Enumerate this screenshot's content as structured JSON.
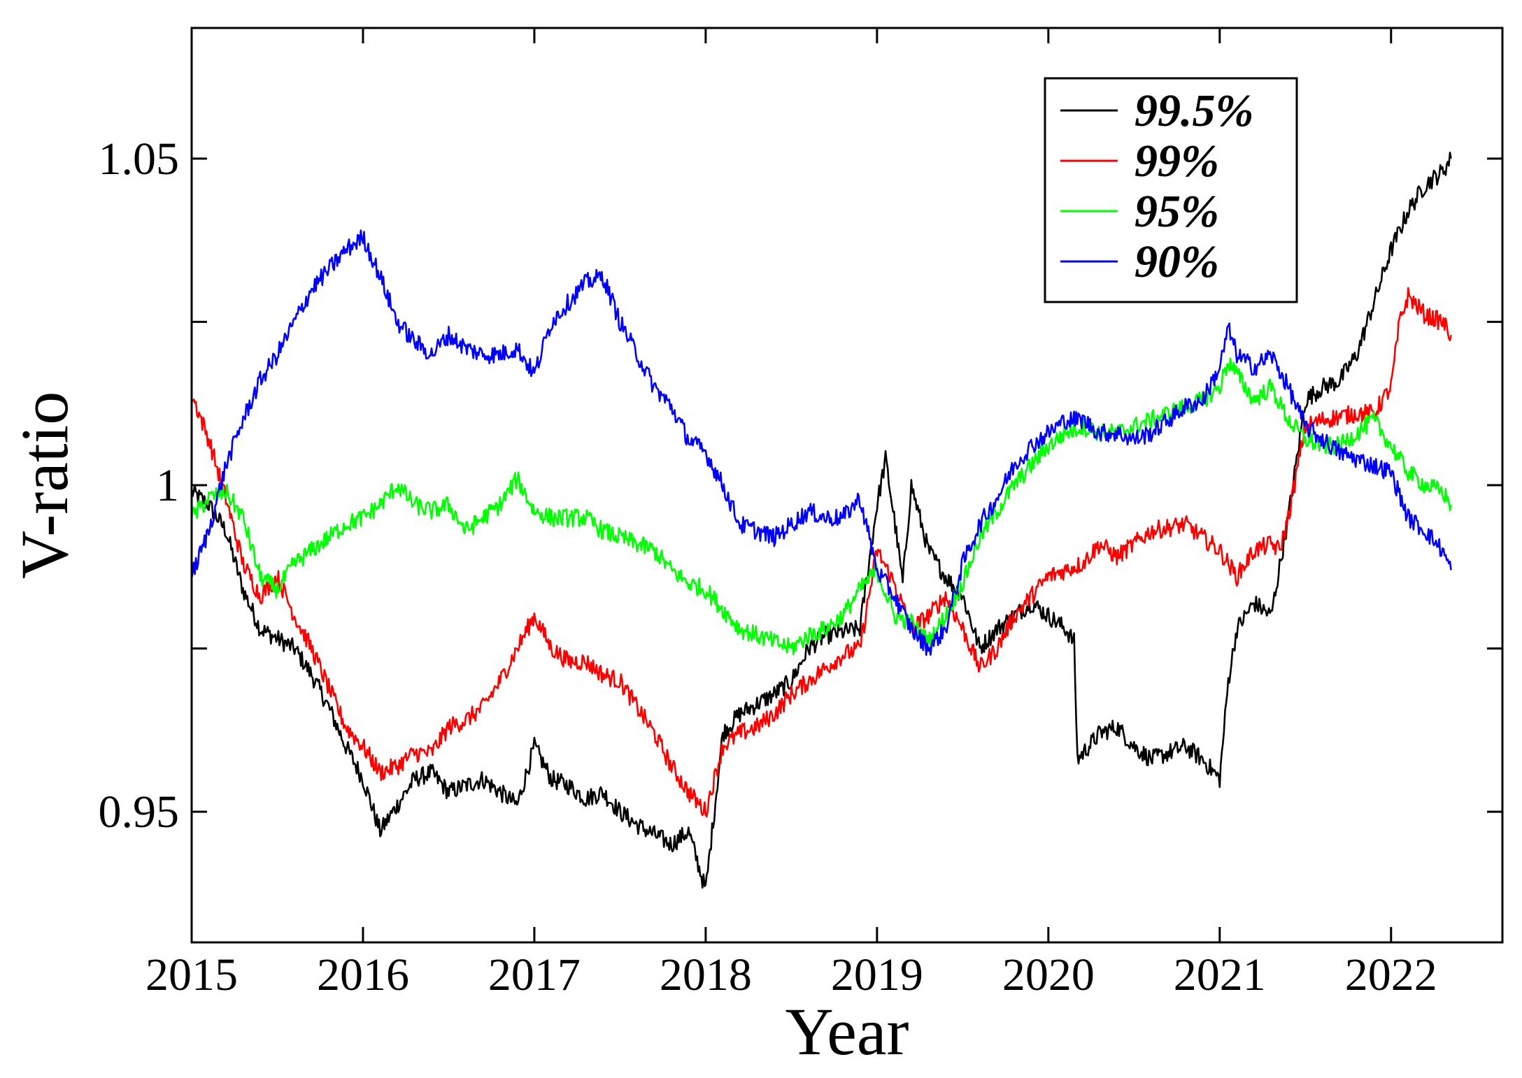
{
  "chart_data": {
    "type": "line",
    "title": "",
    "xlabel": "Year",
    "ylabel": "V-ratio",
    "xlim": [
      2015.0,
      2022.65
    ],
    "ylim": [
      0.93,
      1.07
    ],
    "x_ticks": [
      2015,
      2016,
      2017,
      2018,
      2019,
      2020,
      2021,
      2022
    ],
    "x_tick_labels": [
      "2015",
      "2016",
      "2017",
      "2018",
      "2019",
      "2020",
      "2021",
      "2022"
    ],
    "y_ticks": [
      0.95,
      0.975,
      1.0,
      1.025,
      1.05
    ],
    "y_tick_labels": [
      "0.95",
      "",
      "1",
      "",
      "1.05"
    ],
    "grid": false,
    "legend_position": "top-right",
    "series": [
      {
        "name": "99.5%",
        "color": "#000000",
        "x": [
          2015.0,
          2015.1,
          2015.2,
          2015.3,
          2015.4,
          2015.6,
          2015.7,
          2015.8,
          2015.9,
          2016.0,
          2016.1,
          2016.2,
          2016.3,
          2016.4,
          2016.5,
          2016.7,
          2016.8,
          2016.9,
          2017.0,
          2017.1,
          2017.2,
          2017.3,
          2017.4,
          2017.5,
          2017.6,
          2017.8,
          2017.9,
          2018.0,
          2018.1,
          2018.2,
          2018.4,
          2018.5,
          2018.6,
          2018.7,
          2018.9,
          2019.0,
          2019.05,
          2019.1,
          2019.15,
          2019.2,
          2019.3,
          2019.4,
          2019.5,
          2019.6,
          2019.7,
          2019.8,
          2019.9,
          2020.0,
          2020.1,
          2020.15,
          2020.17,
          2020.3,
          2020.4,
          2020.5,
          2020.6,
          2020.8,
          2020.9,
          2021.0,
          2021.05,
          2021.1,
          2021.2,
          2021.3,
          2021.4,
          2021.5,
          2021.6,
          2021.7,
          2021.8,
          2021.9,
          2022.0,
          2022.1,
          2022.2,
          2022.3,
          2022.35
        ],
        "y": [
          0.999,
          0.997,
          0.993,
          0.984,
          0.978,
          0.975,
          0.971,
          0.966,
          0.96,
          0.955,
          0.947,
          0.951,
          0.955,
          0.956,
          0.953,
          0.955,
          0.953,
          0.951,
          0.96,
          0.955,
          0.954,
          0.952,
          0.953,
          0.95,
          0.948,
          0.945,
          0.947,
          0.938,
          0.962,
          0.965,
          0.968,
          0.97,
          0.975,
          0.977,
          0.978,
          0.997,
          1.004,
          0.995,
          0.985,
          1.0,
          0.99,
          0.986,
          0.983,
          0.975,
          0.978,
          0.98,
          0.982,
          0.98,
          0.978,
          0.976,
          0.958,
          0.962,
          0.963,
          0.96,
          0.958,
          0.96,
          0.958,
          0.955,
          0.97,
          0.978,
          0.982,
          0.98,
          0.995,
          1.013,
          1.015,
          1.016,
          1.02,
          1.028,
          1.036,
          1.042,
          1.046,
          1.048,
          1.05
        ]
      },
      {
        "name": "99%",
        "color": "#ff0000",
        "x": [
          2015.0,
          2015.1,
          2015.2,
          2015.3,
          2015.4,
          2015.5,
          2015.6,
          2015.7,
          2015.8,
          2015.9,
          2016.0,
          2016.1,
          2016.2,
          2016.3,
          2016.4,
          2016.5,
          2016.6,
          2016.7,
          2016.8,
          2016.9,
          2017.0,
          2017.1,
          2017.2,
          2017.3,
          2017.4,
          2017.5,
          2017.6,
          2017.7,
          2017.8,
          2017.9,
          2018.0,
          2018.1,
          2018.2,
          2018.3,
          2018.4,
          2018.5,
          2018.6,
          2018.7,
          2018.8,
          2018.9,
          2019.0,
          2019.1,
          2019.2,
          2019.3,
          2019.4,
          2019.5,
          2019.6,
          2019.7,
          2019.8,
          2019.9,
          2020.0,
          2020.2,
          2020.3,
          2020.4,
          2020.6,
          2020.8,
          2020.9,
          2021.0,
          2021.1,
          2021.2,
          2021.3,
          2021.35,
          2021.4,
          2021.5,
          2021.6,
          2021.8,
          2021.9,
          2022.0,
          2022.05,
          2022.1,
          2022.2,
          2022.3,
          2022.35
        ],
        "y": [
          1.014,
          1.007,
          0.998,
          0.988,
          0.983,
          0.986,
          0.98,
          0.975,
          0.969,
          0.963,
          0.96,
          0.956,
          0.957,
          0.959,
          0.959,
          0.963,
          0.964,
          0.966,
          0.97,
          0.975,
          0.98,
          0.975,
          0.973,
          0.973,
          0.971,
          0.97,
          0.966,
          0.962,
          0.957,
          0.953,
          0.95,
          0.96,
          0.962,
          0.963,
          0.965,
          0.968,
          0.97,
          0.972,
          0.974,
          0.975,
          0.99,
          0.985,
          0.978,
          0.98,
          0.983,
          0.978,
          0.972,
          0.975,
          0.98,
          0.983,
          0.986,
          0.988,
          0.991,
          0.989,
          0.993,
          0.994,
          0.992,
          0.99,
          0.986,
          0.99,
          0.991,
          0.99,
          0.995,
          1.009,
          1.01,
          1.011,
          1.011,
          1.015,
          1.025,
          1.029,
          1.026,
          1.025,
          1.023
        ]
      },
      {
        "name": "95%",
        "color": "#00ff00",
        "x": [
          2015.0,
          2015.1,
          2015.2,
          2015.3,
          2015.4,
          2015.5,
          2015.6,
          2015.7,
          2015.8,
          2015.9,
          2016.0,
          2016.1,
          2016.2,
          2016.3,
          2016.4,
          2016.5,
          2016.6,
          2016.7,
          2016.8,
          2016.9,
          2017.0,
          2017.1,
          2017.2,
          2017.3,
          2017.4,
          2017.5,
          2017.6,
          2017.7,
          2017.8,
          2017.9,
          2018.0,
          2018.1,
          2018.2,
          2018.3,
          2018.4,
          2018.5,
          2018.6,
          2018.7,
          2018.8,
          2018.9,
          2019.0,
          2019.1,
          2019.2,
          2019.3,
          2019.4,
          2019.5,
          2019.6,
          2019.7,
          2019.8,
          2019.9,
          2020.0,
          2020.1,
          2020.2,
          2020.3,
          2020.4,
          2020.5,
          2020.6,
          2020.7,
          2020.8,
          2020.9,
          2021.0,
          2021.05,
          2021.1,
          2021.2,
          2021.3,
          2021.4,
          2021.5,
          2021.6,
          2021.7,
          2021.8,
          2021.9,
          2022.0,
          2022.1,
          2022.2,
          2022.3,
          2022.35
        ],
        "y": [
          0.995,
          0.998,
          0.999,
          0.995,
          0.986,
          0.984,
          0.988,
          0.99,
          0.992,
          0.994,
          0.995,
          0.997,
          1.0,
          0.997,
          0.996,
          0.997,
          0.993,
          0.995,
          0.997,
          1.001,
          0.996,
          0.995,
          0.995,
          0.995,
          0.993,
          0.992,
          0.991,
          0.99,
          0.987,
          0.985,
          0.984,
          0.981,
          0.978,
          0.977,
          0.976,
          0.975,
          0.977,
          0.978,
          0.98,
          0.984,
          0.987,
          0.98,
          0.979,
          0.976,
          0.98,
          0.985,
          0.992,
          0.996,
          1.0,
          1.003,
          1.006,
          1.008,
          1.009,
          1.008,
          1.008,
          1.009,
          1.01,
          1.011,
          1.012,
          1.013,
          1.015,
          1.019,
          1.017,
          1.013,
          1.015,
          1.01,
          1.007,
          1.006,
          1.006,
          1.008,
          1.01,
          1.006,
          1.002,
          1.0,
          0.999,
          0.997
        ]
      },
      {
        "name": "90%",
        "color": "#0000ff",
        "x": [
          2015.0,
          2015.1,
          2015.2,
          2015.3,
          2015.4,
          2015.5,
          2015.6,
          2015.7,
          2015.8,
          2015.9,
          2016.0,
          2016.1,
          2016.2,
          2016.3,
          2016.4,
          2016.5,
          2016.6,
          2016.7,
          2016.8,
          2016.9,
          2017.0,
          2017.1,
          2017.2,
          2017.3,
          2017.4,
          2017.5,
          2017.6,
          2017.7,
          2017.8,
          2017.9,
          2018.0,
          2018.1,
          2018.2,
          2018.3,
          2018.4,
          2018.5,
          2018.6,
          2018.7,
          2018.8,
          2018.9,
          2019.0,
          2019.1,
          2019.2,
          2019.3,
          2019.4,
          2019.5,
          2019.6,
          2019.7,
          2019.8,
          2019.9,
          2020.0,
          2020.1,
          2020.2,
          2020.3,
          2020.4,
          2020.5,
          2020.6,
          2020.7,
          2020.8,
          2020.9,
          2021.0,
          2021.05,
          2021.1,
          2021.2,
          2021.3,
          2021.4,
          2021.5,
          2021.6,
          2021.7,
          2021.8,
          2021.9,
          2022.0,
          2022.1,
          2022.2,
          2022.3,
          2022.35
        ],
        "y": [
          0.986,
          0.993,
          1.003,
          1.01,
          1.016,
          1.02,
          1.025,
          1.03,
          1.033,
          1.036,
          1.038,
          1.032,
          1.025,
          1.022,
          1.02,
          1.023,
          1.021,
          1.02,
          1.02,
          1.021,
          1.017,
          1.025,
          1.028,
          1.031,
          1.032,
          1.025,
          1.02,
          1.015,
          1.012,
          1.007,
          1.005,
          1.0,
          0.994,
          0.993,
          0.992,
          0.994,
          0.996,
          0.995,
          0.995,
          0.998,
          0.987,
          0.983,
          0.978,
          0.975,
          0.978,
          0.988,
          0.994,
          0.998,
          1.003,
          1.006,
          1.008,
          1.01,
          1.01,
          1.008,
          1.008,
          1.007,
          1.008,
          1.01,
          1.012,
          1.013,
          1.018,
          1.024,
          1.02,
          1.018,
          1.02,
          1.015,
          1.009,
          1.007,
          1.005,
          1.004,
          1.003,
          1.002,
          0.995,
          0.993,
          0.99,
          0.987
        ]
      }
    ]
  }
}
